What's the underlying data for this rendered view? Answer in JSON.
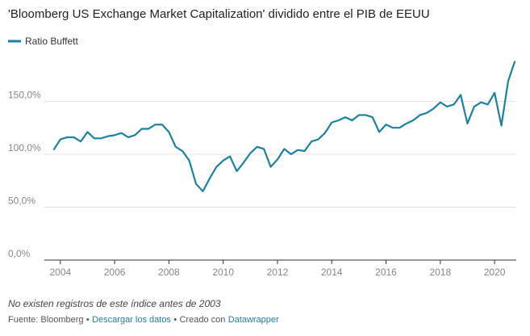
{
  "chart_data": {
    "type": "line",
    "title": "'Bloomberg US Exchange Market Capitalization' dividido entre el PIB de EEUU",
    "x": [
      2003.75,
      2004,
      2004.25,
      2004.5,
      2004.75,
      2005,
      2005.25,
      2005.5,
      2005.75,
      2006,
      2006.25,
      2006.5,
      2006.75,
      2007,
      2007.25,
      2007.5,
      2007.75,
      2008,
      2008.25,
      2008.5,
      2008.75,
      2009,
      2009.25,
      2009.5,
      2009.75,
      2010,
      2010.25,
      2010.5,
      2010.75,
      2011,
      2011.25,
      2011.5,
      2011.75,
      2012,
      2012.25,
      2012.5,
      2012.75,
      2013,
      2013.25,
      2013.5,
      2013.75,
      2014,
      2014.25,
      2014.5,
      2014.75,
      2015,
      2015.25,
      2015.5,
      2015.75,
      2016,
      2016.25,
      2016.5,
      2016.75,
      2017,
      2017.25,
      2017.5,
      2017.75,
      2018,
      2018.25,
      2018.5,
      2018.75,
      2019,
      2019.25,
      2019.5,
      2019.75,
      2020,
      2020.25,
      2020.5,
      2020.75
    ],
    "series": [
      {
        "name": "Ratio Buffett",
        "color": "#1d81a2",
        "values": [
          104,
          114,
          116,
          116,
          112,
          121,
          115,
          115,
          117,
          118,
          120,
          116,
          118,
          124,
          124,
          128,
          128,
          121,
          107,
          103,
          94,
          72,
          65,
          77,
          88,
          94,
          98,
          84,
          92,
          101,
          107,
          105,
          88,
          95,
          105,
          100,
          104,
          103,
          112,
          114,
          120,
          130,
          132,
          135,
          132,
          137,
          137,
          135,
          121,
          128,
          125,
          125,
          129,
          132,
          137,
          139,
          143,
          149,
          145,
          147,
          156,
          129,
          145,
          149,
          147,
          158,
          127,
          169,
          188
        ]
      }
    ],
    "xlim": [
      2003.5,
      2020.8
    ],
    "xticks": [
      2004,
      2006,
      2008,
      2010,
      2012,
      2014,
      2016,
      2018,
      2020
    ],
    "ylim": [
      0,
      190
    ],
    "yticks": [
      {
        "value": 0,
        "label": "0,0%"
      },
      {
        "value": 50,
        "label": "50,0%"
      },
      {
        "value": 100,
        "label": "100,0%"
      },
      {
        "value": 150,
        "label": "150,0%"
      }
    ],
    "grid": true,
    "legend": "top-left",
    "note": "No existen registros de este índice antes de 2003",
    "source": "Fuente: Bloomberg",
    "separator": "•",
    "download": "Descargar los datos",
    "credit": "Creado con",
    "credit_link": "Datawrapper"
  }
}
